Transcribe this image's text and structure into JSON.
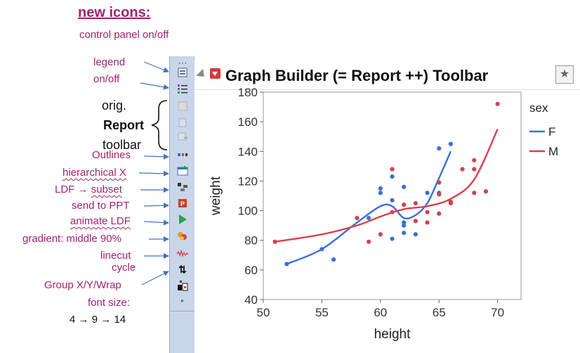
{
  "annotations": {
    "title": "new icons:",
    "control_panel": "control panel on/off",
    "legend_1": "legend",
    "legend_2": "on/off",
    "orig": "orig.",
    "report": "Report",
    "toolbar_word": "toolbar",
    "outlines": "Outlines",
    "hierarchical": "hierarchical X",
    "ldf_prefix": "LDF",
    "arrow": "→",
    "subset": "subset",
    "ppt": "send to PPT",
    "animate": "animate LDF",
    "gradient": "gradient: middle 90%",
    "linecut": "linecut",
    "cycle": "cycle",
    "group": "Group X/Y/Wrap",
    "font_size": "font size:",
    "fs_4": "4",
    "fs_9": "9",
    "fs_14": "14"
  },
  "report": {
    "title": "Graph Builder (= Report ++) Toolbar"
  },
  "toolbar_icons": [
    "dots-icon",
    "control-panel-icon",
    "legend-icon",
    "report-icon-1",
    "report-icon-2",
    "report-icon-3",
    "outline-icon",
    "hierarchical-x-icon",
    "ldf-subset-icon",
    "ppt-icon",
    "animate-icon",
    "gradient-icon",
    "linecut-icon",
    "group-xywrap-icon",
    "font-size-icon"
  ],
  "colors": {
    "female": "#3a6fd6",
    "male": "#d6404f",
    "annotation": "#a0226e"
  },
  "chart_data": {
    "type": "scatter",
    "xlabel": "height",
    "ylabel": "weight",
    "xlim": [
      50,
      72
    ],
    "ylim": [
      40,
      180
    ],
    "xticks": [
      50,
      55,
      60,
      65,
      70
    ],
    "yticks": [
      40,
      60,
      80,
      100,
      120,
      140,
      160,
      180
    ],
    "legend_title": "sex",
    "legend_position": "right",
    "series": [
      {
        "name": "F",
        "color": "#3a6fd6",
        "points": [
          [
            52,
            64
          ],
          [
            55,
            74
          ],
          [
            56,
            67
          ],
          [
            59,
            95
          ],
          [
            60,
            115
          ],
          [
            60,
            112
          ],
          [
            61,
            123
          ],
          [
            61,
            128
          ],
          [
            61,
            107
          ],
          [
            61,
            81
          ],
          [
            62,
            116
          ],
          [
            62,
            92
          ],
          [
            62,
            90
          ],
          [
            62,
            85
          ],
          [
            63,
            84
          ],
          [
            64,
            112
          ],
          [
            65,
            142
          ],
          [
            65,
            112
          ],
          [
            66,
            145
          ]
        ],
        "smoother": [
          [
            52,
            64
          ],
          [
            55,
            74
          ],
          [
            58,
            92
          ],
          [
            60,
            103
          ],
          [
            61,
            103
          ],
          [
            62,
            95
          ],
          [
            63,
            97
          ],
          [
            64,
            105
          ],
          [
            65,
            122
          ],
          [
            66,
            140
          ]
        ]
      },
      {
        "name": "M",
        "color": "#d6404f",
        "points": [
          [
            51,
            79
          ],
          [
            58,
            95
          ],
          [
            59,
            79
          ],
          [
            60,
            84
          ],
          [
            61,
            128
          ],
          [
            61,
            99
          ],
          [
            62,
            104
          ],
          [
            63,
            105
          ],
          [
            63,
            93
          ],
          [
            64,
            92
          ],
          [
            64,
            99
          ],
          [
            65,
            119
          ],
          [
            65,
            111
          ],
          [
            65,
            98
          ],
          [
            66,
            106
          ],
          [
            66,
            105
          ],
          [
            67,
            128
          ],
          [
            68,
            134
          ],
          [
            68,
            128
          ],
          [
            68,
            112
          ],
          [
            69,
            113
          ],
          [
            70,
            172
          ]
        ],
        "smoother": [
          [
            51,
            79
          ],
          [
            55,
            84
          ],
          [
            58,
            90
          ],
          [
            60,
            96
          ],
          [
            62,
            101
          ],
          [
            64,
            103
          ],
          [
            66,
            108
          ],
          [
            68,
            121
          ],
          [
            70,
            155
          ]
        ]
      }
    ]
  }
}
